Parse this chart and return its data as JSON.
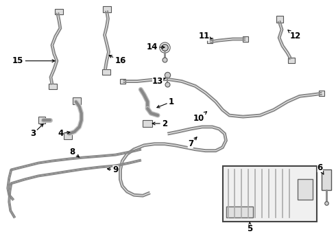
{
  "background_color": "#ffffff",
  "line_color": "#888888",
  "line_color_dark": "#555555",
  "text_color": "#000000",
  "line_width": 1.4,
  "fig_width": 4.9,
  "fig_height": 3.6,
  "dpi": 100
}
